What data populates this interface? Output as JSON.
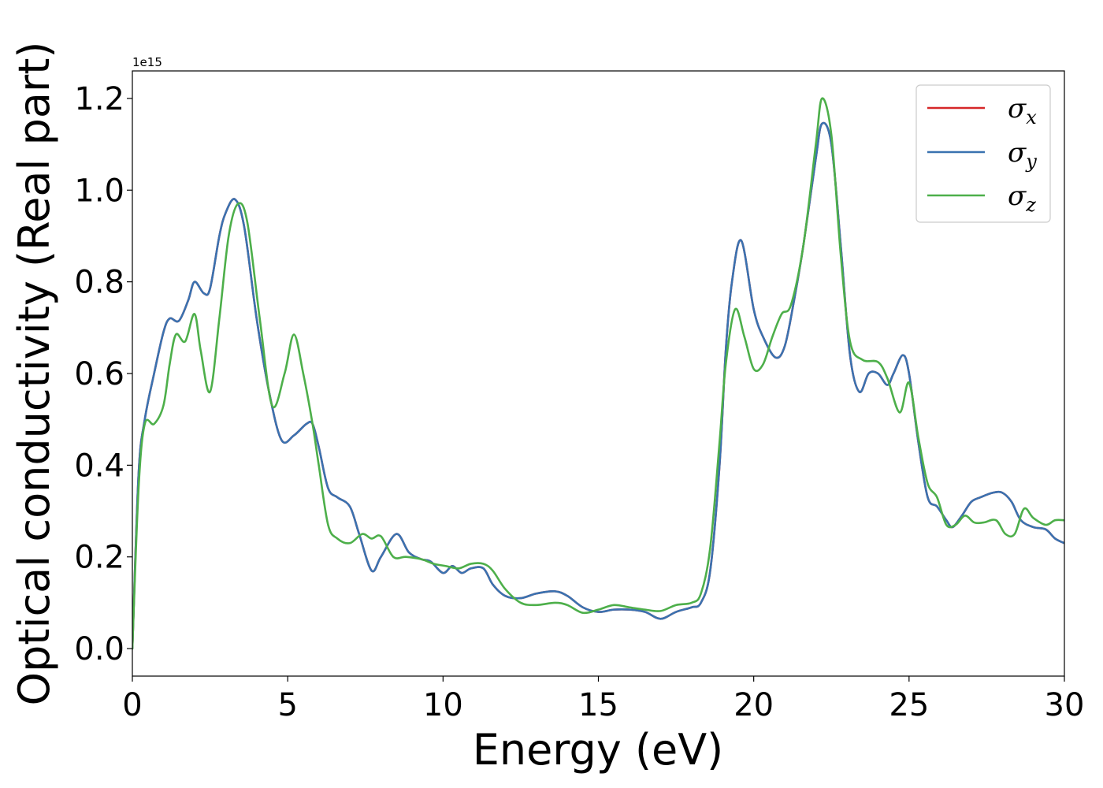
{
  "chart_data": {
    "type": "line",
    "title": "",
    "xlabel": "Energy (eV)",
    "ylabel": "Optical conductivity (Real part)",
    "y_offset_text": "1e15",
    "xlim": [
      0,
      30
    ],
    "ylim": [
      -0.06,
      1.26
    ],
    "x_ticks": [
      0,
      5,
      10,
      15,
      20,
      25,
      30
    ],
    "x_tick_labels": [
      "0",
      "5",
      "10",
      "15",
      "20",
      "25",
      "30"
    ],
    "y_ticks": [
      0.0,
      0.2,
      0.4,
      0.6,
      0.8,
      1.0,
      1.2
    ],
    "y_tick_labels": [
      "0.0",
      "0.2",
      "0.4",
      "0.6",
      "0.8",
      "1.0",
      "1.2"
    ],
    "grid": false,
    "legend_position": "top-right",
    "series": [
      {
        "name": "σx",
        "name_base": "σ",
        "name_sub": "x",
        "color": "#d62728",
        "x": [
          0,
          0.2,
          0.4,
          0.7,
          1.0,
          1.2,
          1.5,
          1.8,
          2.0,
          2.3,
          2.5,
          2.8,
          3.0,
          3.3,
          3.6,
          4.0,
          4.4,
          4.8,
          5.2,
          5.6,
          5.8,
          6.0,
          6.3,
          6.6,
          7.0,
          7.3,
          7.7,
          8.0,
          8.5,
          8.9,
          9.3,
          9.6,
          10.0,
          10.3,
          10.6,
          10.9,
          11.3,
          11.6,
          12.0,
          12.5,
          13.0,
          13.6,
          14.0,
          14.5,
          15.0,
          15.5,
          16.0,
          16.5,
          17.0,
          17.5,
          18.0,
          18.3,
          18.6,
          18.9,
          19.1,
          19.3,
          19.6,
          20.0,
          20.3,
          20.7,
          21.0,
          21.3,
          21.6,
          22.0,
          22.2,
          22.5,
          22.8,
          23.1,
          23.4,
          23.7,
          24.0,
          24.3,
          24.5,
          24.8,
          25.0,
          25.3,
          25.6,
          25.9,
          26.2,
          26.4,
          26.7,
          27.0,
          27.3,
          27.7,
          28.0,
          28.3,
          28.6,
          29.0,
          29.4,
          29.7,
          30.0
        ],
        "y": [
          0.0,
          0.38,
          0.5,
          0.6,
          0.69,
          0.72,
          0.715,
          0.76,
          0.8,
          0.775,
          0.785,
          0.9,
          0.95,
          0.98,
          0.92,
          0.72,
          0.56,
          0.455,
          0.465,
          0.49,
          0.49,
          0.44,
          0.35,
          0.33,
          0.31,
          0.25,
          0.17,
          0.2,
          0.25,
          0.21,
          0.195,
          0.19,
          0.165,
          0.18,
          0.165,
          0.175,
          0.175,
          0.14,
          0.115,
          0.11,
          0.12,
          0.125,
          0.115,
          0.09,
          0.08,
          0.085,
          0.085,
          0.08,
          0.065,
          0.08,
          0.09,
          0.1,
          0.17,
          0.4,
          0.65,
          0.8,
          0.89,
          0.74,
          0.68,
          0.635,
          0.66,
          0.76,
          0.88,
          1.07,
          1.145,
          1.1,
          0.88,
          0.64,
          0.56,
          0.6,
          0.6,
          0.575,
          0.6,
          0.64,
          0.6,
          0.45,
          0.33,
          0.31,
          0.28,
          0.265,
          0.29,
          0.32,
          0.33,
          0.34,
          0.34,
          0.32,
          0.28,
          0.265,
          0.26,
          0.24,
          0.23
        ]
      },
      {
        "name": "σy",
        "name_base": "σ",
        "name_sub": "y",
        "color": "#3a72b0",
        "x": [
          0,
          0.2,
          0.4,
          0.7,
          1.0,
          1.2,
          1.5,
          1.8,
          2.0,
          2.3,
          2.5,
          2.8,
          3.0,
          3.3,
          3.6,
          4.0,
          4.4,
          4.8,
          5.2,
          5.6,
          5.8,
          6.0,
          6.3,
          6.6,
          7.0,
          7.3,
          7.7,
          8.0,
          8.5,
          8.9,
          9.3,
          9.6,
          10.0,
          10.3,
          10.6,
          10.9,
          11.3,
          11.6,
          12.0,
          12.5,
          13.0,
          13.6,
          14.0,
          14.5,
          15.0,
          15.5,
          16.0,
          16.5,
          17.0,
          17.5,
          18.0,
          18.3,
          18.6,
          18.9,
          19.1,
          19.3,
          19.6,
          20.0,
          20.3,
          20.7,
          21.0,
          21.3,
          21.6,
          22.0,
          22.2,
          22.5,
          22.8,
          23.1,
          23.4,
          23.7,
          24.0,
          24.3,
          24.5,
          24.8,
          25.0,
          25.3,
          25.6,
          25.9,
          26.2,
          26.4,
          26.7,
          27.0,
          27.3,
          27.7,
          28.0,
          28.3,
          28.6,
          29.0,
          29.4,
          29.7,
          30.0
        ],
        "y": [
          0.0,
          0.38,
          0.5,
          0.6,
          0.69,
          0.72,
          0.715,
          0.76,
          0.8,
          0.775,
          0.785,
          0.9,
          0.95,
          0.98,
          0.92,
          0.72,
          0.56,
          0.455,
          0.465,
          0.49,
          0.49,
          0.44,
          0.35,
          0.33,
          0.31,
          0.25,
          0.17,
          0.2,
          0.25,
          0.21,
          0.195,
          0.19,
          0.165,
          0.18,
          0.165,
          0.175,
          0.175,
          0.14,
          0.115,
          0.11,
          0.12,
          0.125,
          0.115,
          0.09,
          0.08,
          0.085,
          0.085,
          0.08,
          0.065,
          0.08,
          0.09,
          0.1,
          0.17,
          0.4,
          0.65,
          0.8,
          0.89,
          0.74,
          0.68,
          0.635,
          0.66,
          0.76,
          0.88,
          1.07,
          1.145,
          1.1,
          0.88,
          0.64,
          0.56,
          0.6,
          0.6,
          0.575,
          0.6,
          0.64,
          0.6,
          0.45,
          0.33,
          0.31,
          0.28,
          0.265,
          0.29,
          0.32,
          0.33,
          0.34,
          0.34,
          0.32,
          0.28,
          0.265,
          0.26,
          0.24,
          0.23
        ]
      },
      {
        "name": "σz",
        "name_base": "σ",
        "name_sub": "z",
        "color": "#4daf4a",
        "x": [
          0,
          0.2,
          0.4,
          0.7,
          1.0,
          1.2,
          1.4,
          1.7,
          2.0,
          2.2,
          2.5,
          2.8,
          3.1,
          3.4,
          3.7,
          4.1,
          4.5,
          4.9,
          5.2,
          5.5,
          5.8,
          6.0,
          6.3,
          6.6,
          7.0,
          7.4,
          7.7,
          8.0,
          8.4,
          8.8,
          9.3,
          9.7,
          10.1,
          10.5,
          10.9,
          11.3,
          11.6,
          12.0,
          12.5,
          13.0,
          13.6,
          14.0,
          14.5,
          15.0,
          15.5,
          16.0,
          16.5,
          17.0,
          17.5,
          18.0,
          18.3,
          18.6,
          18.9,
          19.1,
          19.4,
          19.7,
          20.0,
          20.3,
          20.6,
          20.9,
          21.2,
          21.6,
          22.0,
          22.2,
          22.5,
          22.8,
          23.1,
          23.5,
          24.0,
          24.3,
          24.7,
          25.0,
          25.3,
          25.6,
          25.9,
          26.2,
          26.5,
          26.8,
          27.1,
          27.4,
          27.8,
          28.1,
          28.4,
          28.7,
          29.0,
          29.4,
          29.7,
          30.0
        ],
        "y": [
          0.0,
          0.35,
          0.49,
          0.49,
          0.53,
          0.62,
          0.685,
          0.67,
          0.73,
          0.65,
          0.56,
          0.72,
          0.9,
          0.97,
          0.93,
          0.72,
          0.53,
          0.6,
          0.685,
          0.6,
          0.49,
          0.4,
          0.27,
          0.24,
          0.23,
          0.25,
          0.24,
          0.245,
          0.2,
          0.2,
          0.195,
          0.185,
          0.18,
          0.175,
          0.185,
          0.185,
          0.17,
          0.13,
          0.1,
          0.095,
          0.1,
          0.095,
          0.078,
          0.085,
          0.095,
          0.09,
          0.085,
          0.082,
          0.095,
          0.1,
          0.12,
          0.22,
          0.45,
          0.62,
          0.74,
          0.68,
          0.61,
          0.62,
          0.68,
          0.73,
          0.75,
          0.88,
          1.1,
          1.2,
          1.12,
          0.86,
          0.67,
          0.63,
          0.625,
          0.59,
          0.515,
          0.58,
          0.46,
          0.36,
          0.33,
          0.27,
          0.27,
          0.29,
          0.275,
          0.275,
          0.28,
          0.25,
          0.25,
          0.305,
          0.285,
          0.27,
          0.28,
          0.28
        ]
      }
    ]
  }
}
